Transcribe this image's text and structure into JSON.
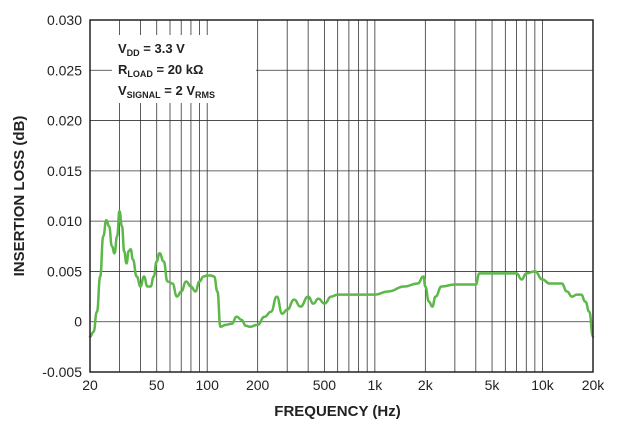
{
  "chart_data": {
    "type": "line",
    "xlabel": "FREQUENCY (Hz)",
    "ylabel": "INSERTION LOSS (dB)",
    "xscale": "log",
    "xlim": [
      20,
      20000
    ],
    "ylim": [
      -0.005,
      0.03
    ],
    "grid": true,
    "line_color": "#5cb848",
    "x_ticks": [
      {
        "value": 20,
        "label": "20"
      },
      {
        "value": 50,
        "label": "50"
      },
      {
        "value": 100,
        "label": "100"
      },
      {
        "value": 200,
        "label": "200"
      },
      {
        "value": 500,
        "label": "500"
      },
      {
        "value": 1000,
        "label": "1k"
      },
      {
        "value": 2000,
        "label": "2k"
      },
      {
        "value": 5000,
        "label": "5k"
      },
      {
        "value": 10000,
        "label": "10k"
      },
      {
        "value": 20000,
        "label": "20k"
      }
    ],
    "y_ticks": [
      {
        "value": 0.03,
        "label": "0.030"
      },
      {
        "value": 0.025,
        "label": "0.025"
      },
      {
        "value": 0.02,
        "label": "0.020"
      },
      {
        "value": 0.015,
        "label": "0.015"
      },
      {
        "value": 0.01,
        "label": "0.010"
      },
      {
        "value": 0.005,
        "label": "0.005"
      },
      {
        "value": 0,
        "label": "0"
      },
      {
        "value": -0.005,
        "label": "-0.005"
      }
    ],
    "annotation": [
      {
        "main": "V",
        "sub": "DD",
        "rest": " = 3.3 V",
        "sub2": ""
      },
      {
        "main": "R",
        "sub": "LOAD",
        "rest": " = 20 kΩ",
        "sub2": ""
      },
      {
        "main": "V",
        "sub": "SIGNAL",
        "rest": " = 2 V",
        "sub2": "RMS"
      }
    ],
    "series": [
      {
        "x": [
          20,
          21,
          22,
          23,
          24,
          25,
          26,
          27,
          28,
          29,
          30,
          31,
          32,
          33,
          34,
          35,
          36,
          38,
          40,
          42,
          44,
          46,
          48,
          50,
          52,
          55,
          58,
          62,
          66,
          70,
          75,
          80,
          85,
          90,
          95,
          100,
          105,
          110,
          115,
          120,
          130,
          140,
          150,
          160,
          170,
          180,
          200,
          220,
          240,
          260,
          280,
          300,
          330,
          360,
          400,
          430,
          460,
          500,
          550,
          600,
          700,
          800,
          900,
          1000,
          1200,
          1500,
          1800,
          1950,
          2000,
          2100,
          2200,
          2300,
          2500,
          3000,
          3500,
          4000,
          4200,
          4500,
          5000,
          5500,
          6000,
          6500,
          7000,
          7500,
          8000,
          9000,
          10000,
          11000,
          12000,
          13000,
          14000,
          15000,
          16000,
          17000,
          18000,
          19000,
          20000
        ],
        "y": [
          -0.0015,
          -0.001,
          0.001,
          0.0045,
          0.0085,
          0.0101,
          0.0095,
          0.0075,
          0.0068,
          0.0085,
          0.011,
          0.0095,
          0.007,
          0.0058,
          0.007,
          0.0072,
          0.0062,
          0.0045,
          0.0035,
          0.0045,
          0.0035,
          0.0035,
          0.0045,
          0.006,
          0.0068,
          0.006,
          0.004,
          0.0038,
          0.0025,
          0.003,
          0.004,
          0.0035,
          0.003,
          0.004,
          0.0045,
          0.0046,
          0.0046,
          0.0045,
          0.003,
          -0.0005,
          -0.0003,
          -0.0002,
          0.0005,
          0.0002,
          -0.0004,
          -0.0005,
          -0.0003,
          0.0005,
          0.001,
          0.0025,
          0.0008,
          0.0012,
          0.0022,
          0.0015,
          0.0025,
          0.0018,
          0.0023,
          0.0018,
          0.0025,
          0.0027,
          0.0027,
          0.0027,
          0.0027,
          0.0027,
          0.003,
          0.0035,
          0.0038,
          0.0045,
          0.0035,
          0.002,
          0.0015,
          0.0025,
          0.0035,
          0.0037,
          0.0037,
          0.0037,
          0.0048,
          0.0048,
          0.0048,
          0.0048,
          0.0048,
          0.0048,
          0.0048,
          0.0042,
          0.0048,
          0.005,
          0.0042,
          0.0038,
          0.0038,
          0.0038,
          0.003,
          0.0025,
          0.0027,
          0.0027,
          0.002,
          0.001,
          -0.0015
        ]
      }
    ]
  }
}
